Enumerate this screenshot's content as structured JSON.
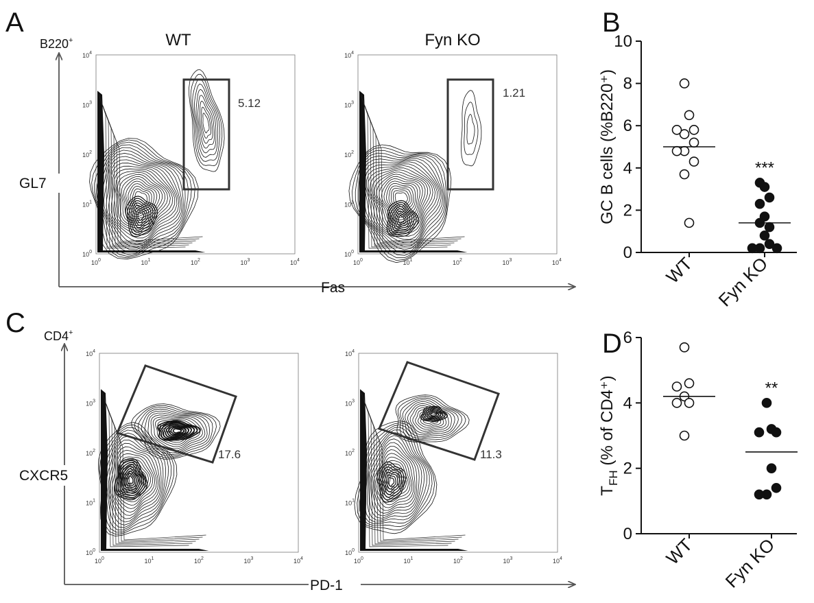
{
  "panels": {
    "A": "A",
    "B": "B",
    "C": "C",
    "D": "D"
  },
  "panel_a": {
    "titles": [
      "WT",
      "Fyn KO"
    ],
    "gate_values": [
      "5.12",
      "1.21"
    ],
    "y_population": "B220",
    "y_population_sup": "+",
    "ylabel": "GL7",
    "xlabel": "Fas"
  },
  "panel_c": {
    "gate_values": [
      "17.6",
      "11.3"
    ],
    "y_population": "CD4",
    "y_population_sup": "+",
    "ylabel": "CXCR5",
    "xlabel": "PD-1"
  },
  "flow_ticks": [
    {
      "base": "10",
      "exp": "0"
    },
    {
      "base": "10",
      "exp": "1"
    },
    {
      "base": "10",
      "exp": "2"
    },
    {
      "base": "10",
      "exp": "3"
    },
    {
      "base": "10",
      "exp": "4"
    }
  ],
  "chart_data": [
    {
      "panel": "B",
      "type": "scatter",
      "ylabel": "GC B cells (%B220⁺)",
      "ylim": [
        0,
        10
      ],
      "yticks": [
        0,
        2,
        4,
        6,
        8,
        10
      ],
      "categories": [
        "WT",
        "Fyn KO"
      ],
      "series": [
        {
          "name": "WT",
          "marker": "open",
          "values": [
            8.0,
            6.5,
            5.8,
            5.6,
            5.8,
            5.2,
            4.8,
            4.8,
            4.3,
            3.7,
            1.4
          ],
          "mean": 5.0
        },
        {
          "name": "Fyn KO",
          "marker": "filled",
          "values": [
            3.3,
            3.1,
            2.6,
            2.3,
            1.7,
            1.2,
            1.4,
            0.8,
            0.4,
            0.2,
            0.2,
            0.2
          ],
          "mean": 1.4
        }
      ],
      "significance": "***"
    },
    {
      "panel": "D",
      "type": "scatter",
      "ylabel": "T",
      "ylabel_sub": "FH",
      "ylabel_rest": " (% of CD4⁺)",
      "ylim": [
        0,
        6
      ],
      "yticks": [
        0,
        2,
        4,
        6
      ],
      "categories": [
        "WT",
        "Fyn KO"
      ],
      "series": [
        {
          "name": "WT",
          "marker": "open",
          "values": [
            5.7,
            4.6,
            4.5,
            4.2,
            4.0,
            4.0,
            3.0
          ],
          "mean": 4.2
        },
        {
          "name": "Fyn KO",
          "marker": "filled",
          "values": [
            4.0,
            3.2,
            3.1,
            3.1,
            2.0,
            1.4,
            1.2,
            1.2
          ],
          "mean": 2.5
        }
      ],
      "significance": "**"
    }
  ]
}
